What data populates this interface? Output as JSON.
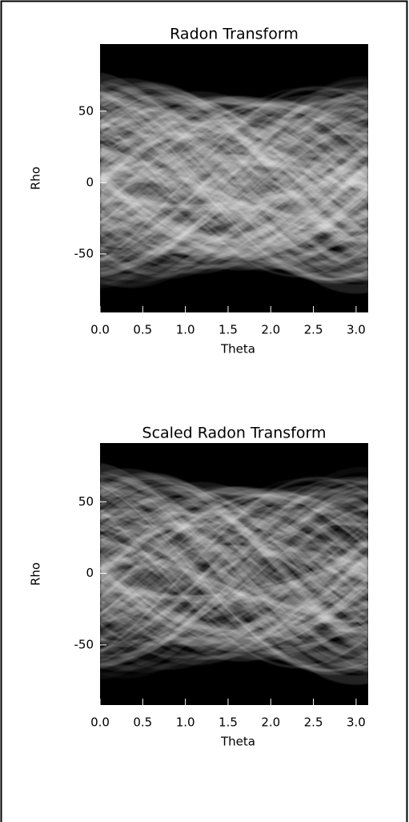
{
  "chart_data": [
    {
      "type": "image",
      "title": "Radon Transform",
      "xlabel": "Theta",
      "ylabel": "Rho",
      "xlim": [
        0,
        3.1416
      ],
      "ylim": [
        -91,
        97
      ],
      "xticks": [
        {
          "value": 0,
          "label": "0.0"
        },
        0.5,
        {
          "value": 1,
          "label": "1.0"
        },
        1.5,
        {
          "value": 2,
          "label": "2.0"
        },
        2.5,
        {
          "value": 3,
          "label": "3.0"
        }
      ],
      "yticks": [
        -50,
        0,
        50
      ]
    },
    {
      "type": "image",
      "title": "Scaled Radon Transform",
      "xlabel": "Theta",
      "ylabel": "Rho",
      "xlim": [
        0,
        3.1416
      ],
      "ylim": [
        -92,
        91
      ],
      "xticks": [
        {
          "value": 0,
          "label": "0.0"
        },
        0.5,
        {
          "value": 1,
          "label": "1.0"
        },
        1.5,
        {
          "value": 2,
          "label": "2.0"
        },
        2.5,
        {
          "value": 3,
          "label": "3.0"
        }
      ],
      "yticks": [
        -50,
        0,
        50
      ]
    }
  ]
}
